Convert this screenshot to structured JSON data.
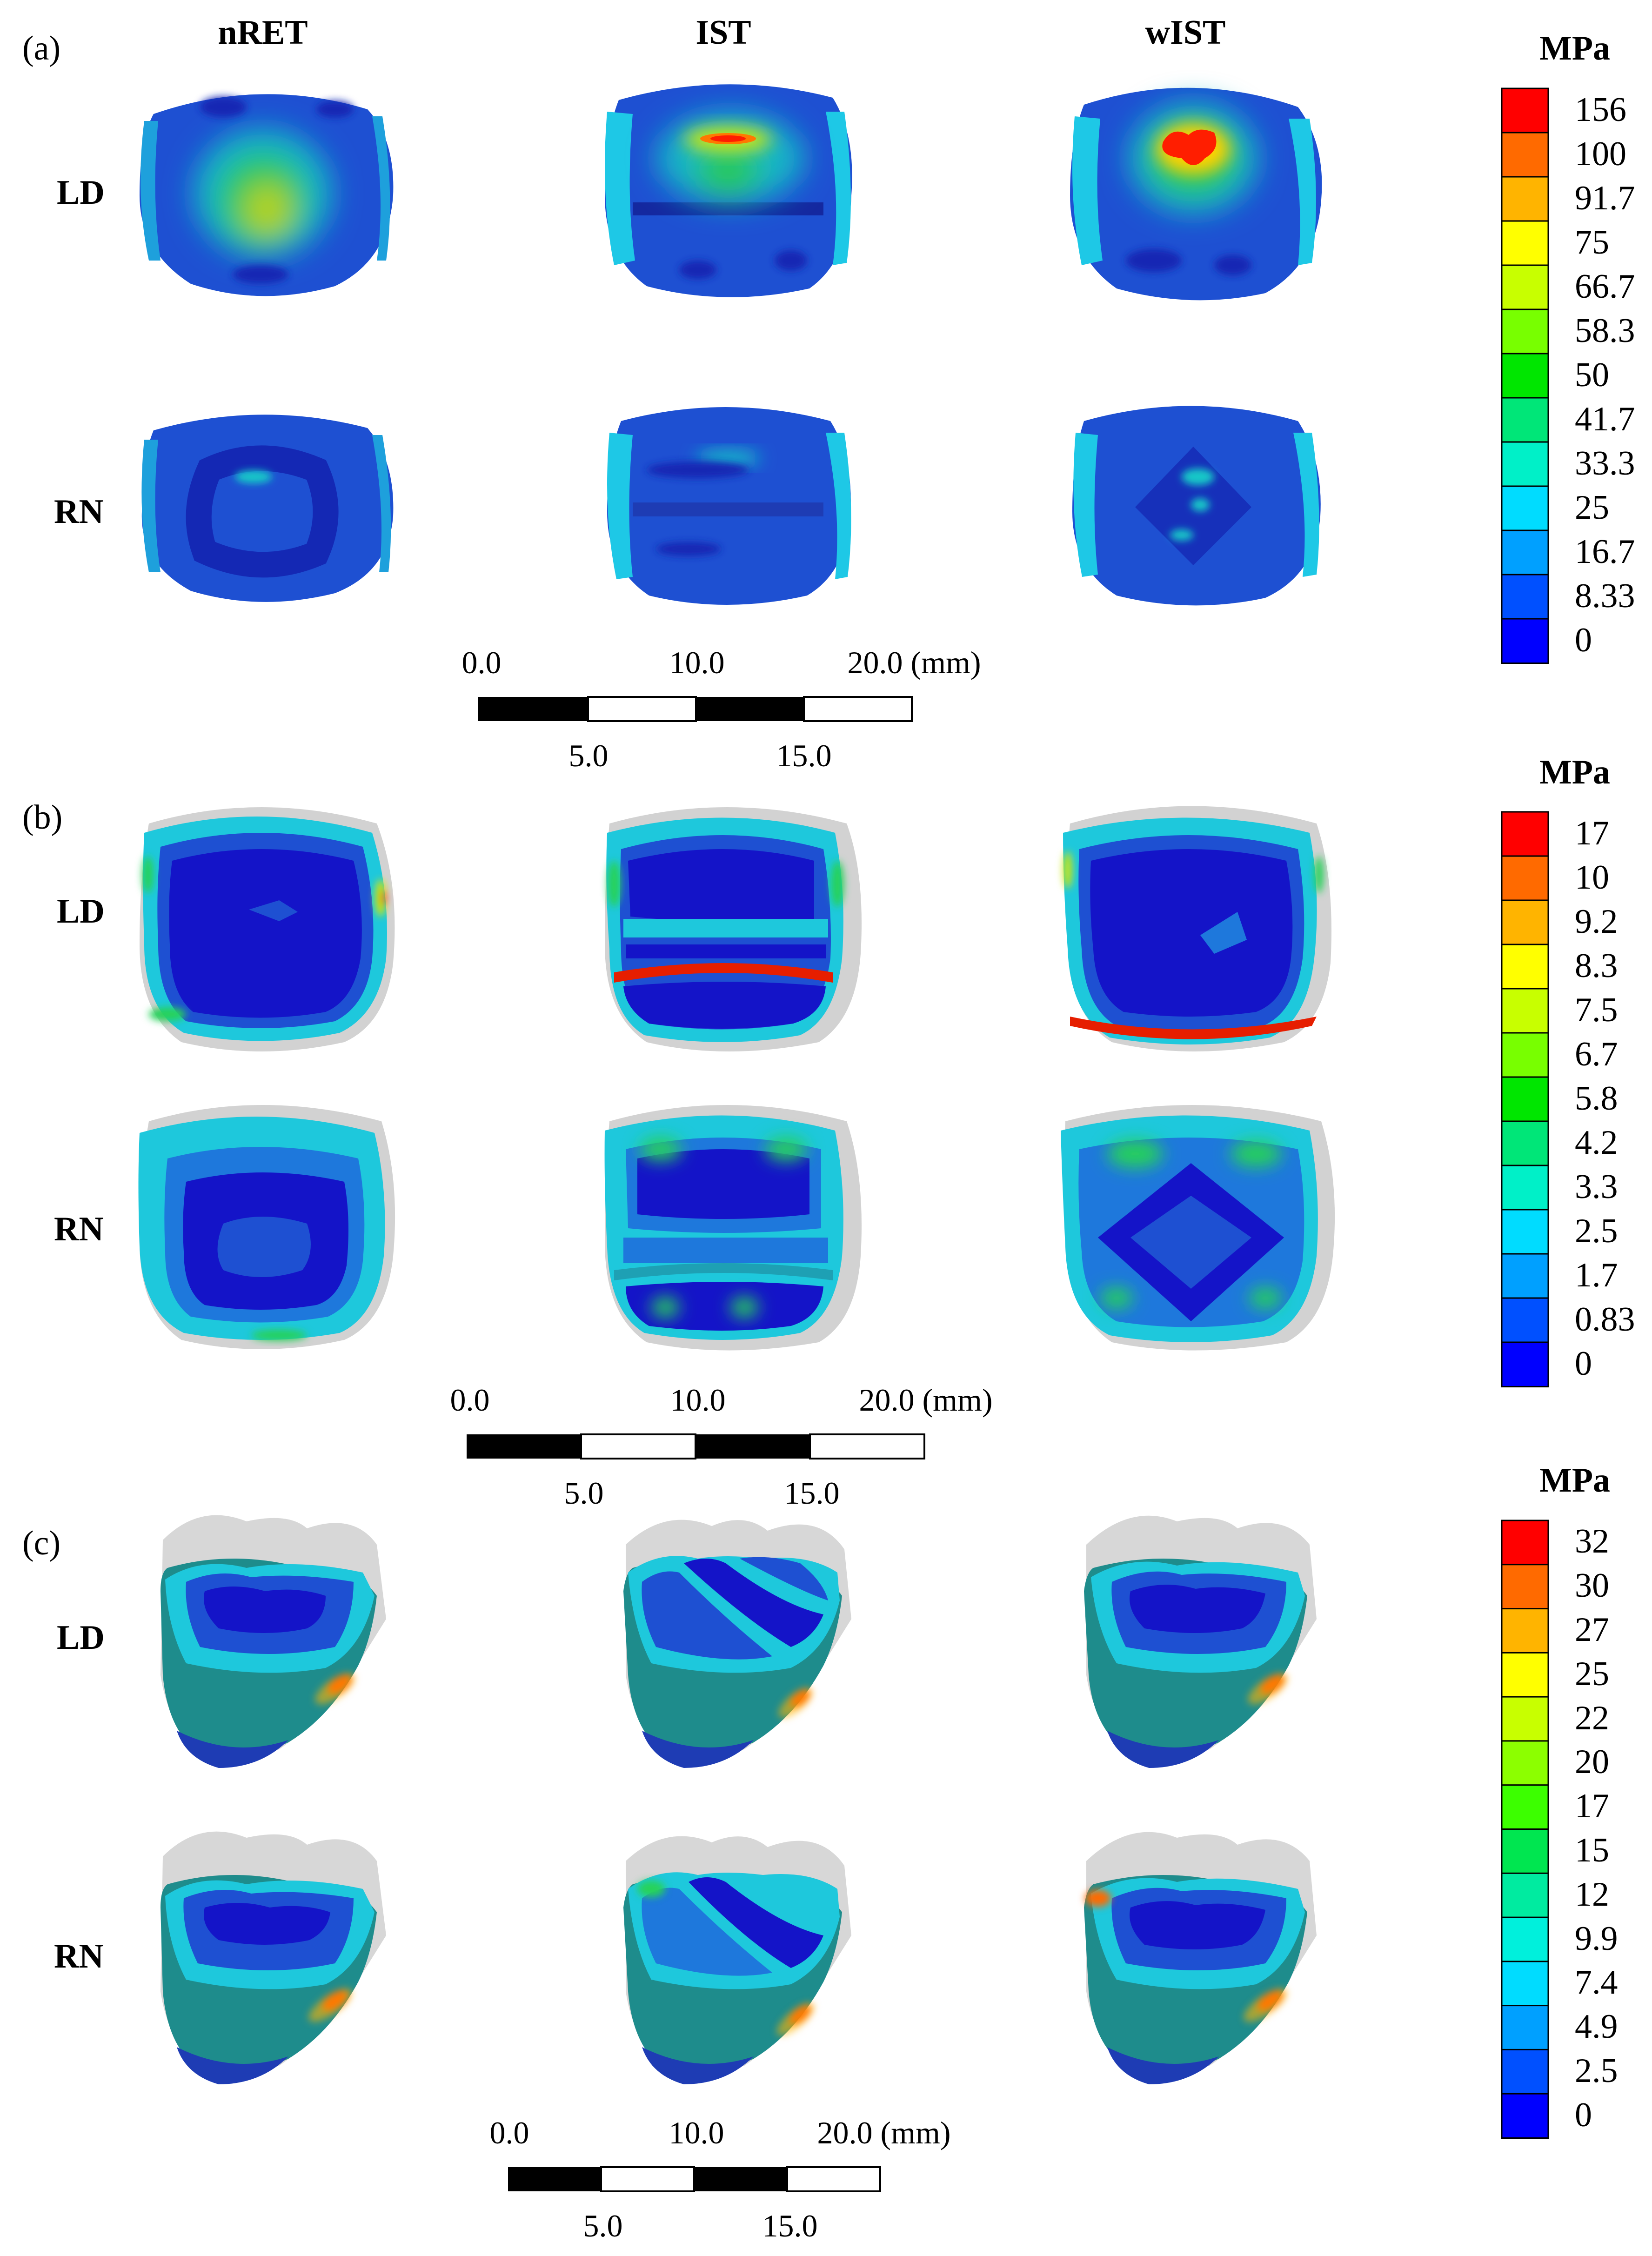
{
  "columns": [
    "nRET",
    "IST",
    "wIST"
  ],
  "rows": [
    "LD",
    "RN"
  ],
  "panels": [
    {
      "label": "(a)",
      "unit": "MPa",
      "legend_ticks": [
        "156",
        "100",
        "91.7",
        "75",
        "66.7",
        "58.3",
        "50",
        "41.7",
        "33.3",
        "25",
        "16.7",
        "8.33",
        "0"
      ],
      "scale_top": [
        "0.0",
        "10.0",
        "20.0 (mm)"
      ],
      "scale_bottom": [
        "5.0",
        "15.0"
      ]
    },
    {
      "label": "(b)",
      "unit": "MPa",
      "legend_ticks": [
        "17",
        "10",
        "9.2",
        "8.3",
        "7.5",
        "6.7",
        "5.8",
        "4.2",
        "3.3",
        "2.5",
        "1.7",
        "0.83",
        "0"
      ],
      "scale_top": [
        "0.0",
        "10.0",
        "20.0 (mm)"
      ],
      "scale_bottom": [
        "5.0",
        "15.0"
      ]
    },
    {
      "label": "(c)",
      "unit": "MPa",
      "legend_ticks": [
        "32",
        "30",
        "27",
        "25",
        "22",
        "20",
        "17",
        "15",
        "12",
        "9.9",
        "7.4",
        "4.9",
        "2.5",
        "0"
      ],
      "scale_top": [
        "0.0",
        "10.0",
        "20.0 (mm)"
      ],
      "scale_bottom": [
        "5.0",
        "15.0"
      ]
    }
  ],
  "colors": {
    "band_colors": [
      "#ff0000",
      "#ff6a00",
      "#ffb400",
      "#ffff00",
      "#c8ff00",
      "#78ff00",
      "#00e600",
      "#00e678",
      "#00f0c8",
      "#00dcff",
      "#00a0ff",
      "#0050ff",
      "#0000ff"
    ],
    "band_colors_c": [
      "#ff0000",
      "#ff6a00",
      "#ffb400",
      "#ffff00",
      "#c8ff00",
      "#8cff00",
      "#3cff00",
      "#00e650",
      "#00eba0",
      "#00f0dc",
      "#00dcff",
      "#00a0ff",
      "#0050ff",
      "#0000ff"
    ],
    "tooth_blue": "#1e46d2",
    "deep_blue": "#1414b4",
    "cyan": "#14c8e6",
    "green": "#2ad25a",
    "yellow": "#ffe600",
    "red": "#ff1e00",
    "teal": "#1e8c8c",
    "grey": "#d7d7d7"
  }
}
